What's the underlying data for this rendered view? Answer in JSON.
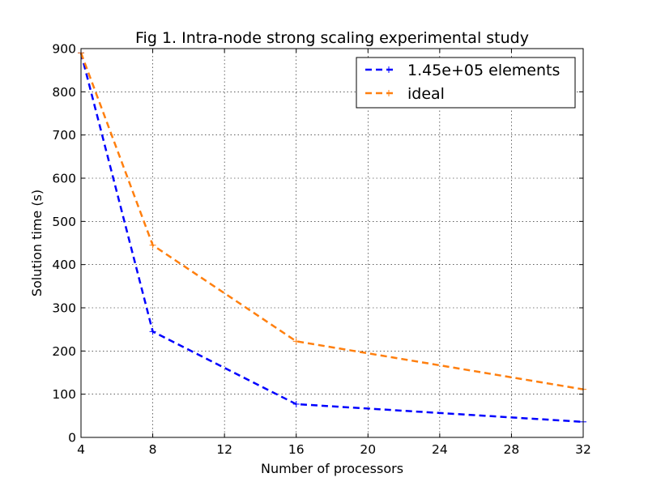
{
  "chart_data": {
    "type": "line",
    "title": "Fig 1. Intra-node strong scaling experimental study",
    "xlabel": "Number of processors",
    "ylabel": "Solution time (s)",
    "xlim": [
      4,
      32
    ],
    "ylim": [
      0,
      900
    ],
    "xticks": [
      "4",
      "8",
      "12",
      "16",
      "20",
      "24",
      "28",
      "32"
    ],
    "yticks": [
      "0",
      "100",
      "200",
      "300",
      "400",
      "500",
      "600",
      "700",
      "800",
      "900"
    ],
    "grid": true,
    "legend_position": "top-right",
    "series": [
      {
        "name": "1.45e+05 elements",
        "color": "#0000ff",
        "line_style": "dashed",
        "marker": "plus",
        "x": [
          4,
          8,
          16,
          32
        ],
        "y": [
          890,
          245,
          77,
          36
        ]
      },
      {
        "name": "ideal",
        "color": "#ff7f0e",
        "line_style": "dashed",
        "marker": "plus",
        "x": [
          4,
          8,
          16,
          32
        ],
        "y": [
          890,
          445,
          222.5,
          111.25
        ]
      }
    ]
  }
}
